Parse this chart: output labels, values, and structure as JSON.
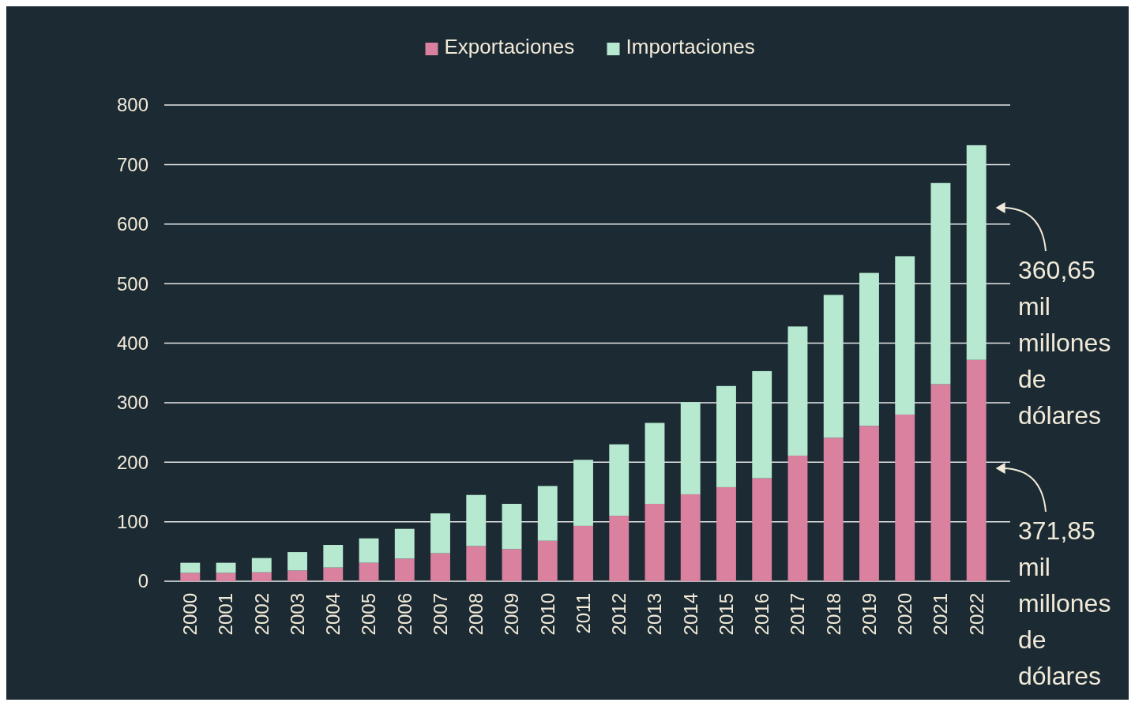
{
  "chart_data": {
    "type": "bar",
    "stacked": true,
    "legend": "top",
    "grid": "y",
    "categories": [
      "2000",
      "2001",
      "2002",
      "2003",
      "2004",
      "2005",
      "2006",
      "2007",
      "2008",
      "2009",
      "2010",
      "2011",
      "2012",
      "2013",
      "2014",
      "2015",
      "2016",
      "2017",
      "2018",
      "2019",
      "2020",
      "2021",
      "2022"
    ],
    "series": [
      {
        "name": "Exportaciones",
        "color": "#d9819f",
        "values": [
          14,
          14,
          15,
          18,
          23,
          31,
          38,
          47,
          59,
          54,
          68,
          93,
          110,
          130,
          146,
          158,
          173,
          211,
          241,
          261,
          280,
          331,
          371.85
        ]
      },
      {
        "name": "Importaciones",
        "color": "#b6e9d0",
        "values": [
          17,
          17,
          24,
          31,
          38,
          41,
          50,
          67,
          86,
          76,
          92,
          111,
          120,
          136,
          155,
          170,
          180,
          217,
          240,
          257,
          266,
          338,
          360.65
        ]
      }
    ],
    "ylim": [
      0,
      800
    ],
    "yticks": [
      0,
      100,
      200,
      300,
      400,
      500,
      600,
      700,
      800
    ],
    "annotations": [
      "360,65 mil millones de dólares",
      "371,85 mil millones de dólares"
    ]
  }
}
